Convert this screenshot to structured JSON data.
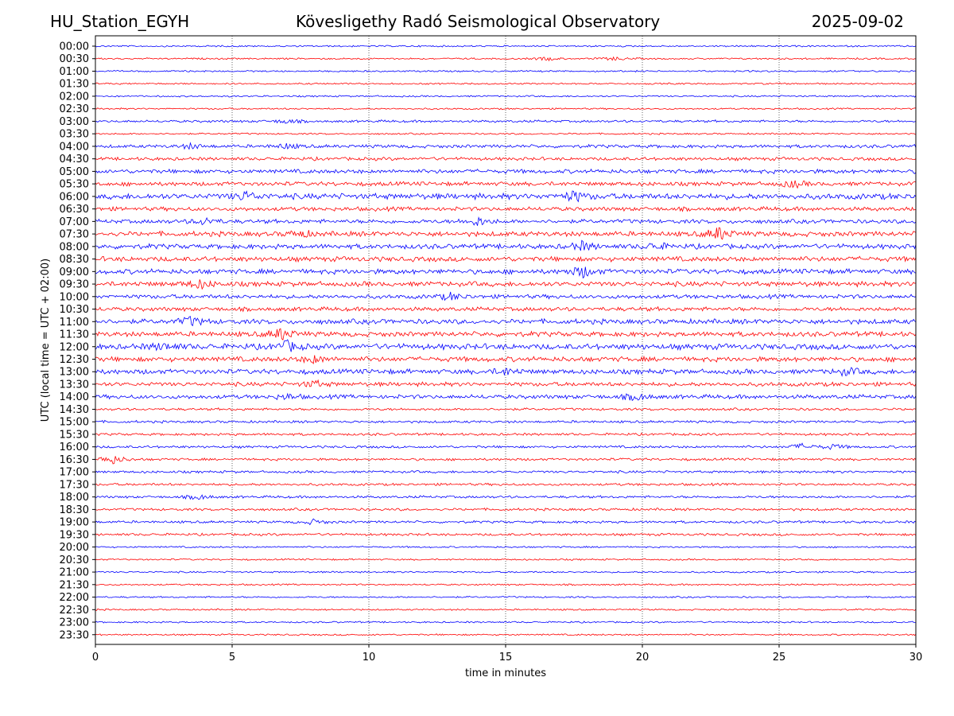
{
  "header": {
    "station": "HU_Station_EGYH",
    "observatory": "Kövesligethy Radó Seismological Observatory",
    "date": "2025-09-02"
  },
  "chart_data": {
    "type": "line",
    "title": "Kövesligethy Radó Seismological Observatory",
    "xlabel": "time in minutes",
    "ylabel": "UTC (local time = UTC + 02:00)",
    "xlim": [
      0,
      30
    ],
    "x_ticks": [
      "0",
      "5",
      "10",
      "15",
      "20",
      "25",
      "30"
    ],
    "grid": "vertical dotted lines at 5-minute ticks",
    "trace_colors": [
      "#0000ff",
      "#ff0000"
    ],
    "rows": [
      "00:00",
      "00:30",
      "01:00",
      "01:30",
      "02:00",
      "02:30",
      "03:00",
      "03:30",
      "04:00",
      "04:30",
      "05:00",
      "05:30",
      "06:00",
      "06:30",
      "07:00",
      "07:30",
      "08:00",
      "08:30",
      "09:00",
      "09:30",
      "10:00",
      "10:30",
      "11:00",
      "11:30",
      "12:00",
      "12:30",
      "13:00",
      "13:30",
      "14:00",
      "14:30",
      "15:00",
      "15:30",
      "16:00",
      "16:30",
      "17:00",
      "17:30",
      "18:00",
      "18:30",
      "19:00",
      "19:30",
      "20:00",
      "20:30",
      "21:00",
      "21:30",
      "22:00",
      "22:30",
      "23:00",
      "23:30"
    ],
    "noise_amplitude": [
      1,
      1,
      1,
      1,
      1,
      1,
      1.5,
      1,
      2,
      2,
      2.5,
      2.5,
      3.5,
      2.5,
      2.5,
      3,
      3,
      3,
      3,
      3,
      2.5,
      2.5,
      3,
      3,
      3.5,
      3,
      3,
      2.5,
      2.5,
      1.5,
      1.5,
      1.5,
      1.5,
      1.5,
      1.5,
      1.5,
      1.5,
      1.5,
      1.5,
      1.5,
      1,
      1,
      1,
      1,
      1,
      1,
      1,
      1
    ],
    "events": [
      {
        "row": "00:30",
        "minute": 16.5,
        "amplitude": 2
      },
      {
        "row": "00:30",
        "minute": 19.0,
        "amplitude": 2
      },
      {
        "row": "03:00",
        "minute": 7.0,
        "amplitude": 2.5
      },
      {
        "row": "04:00",
        "minute": 3.5,
        "amplitude": 3
      },
      {
        "row": "04:00",
        "minute": 7.0,
        "amplitude": 3
      },
      {
        "row": "05:30",
        "minute": 25.5,
        "amplitude": 4
      },
      {
        "row": "06:00",
        "minute": 17.5,
        "amplitude": 6
      },
      {
        "row": "06:00",
        "minute": 5.5,
        "amplitude": 5
      },
      {
        "row": "07:00",
        "minute": 14.0,
        "amplitude": 5
      },
      {
        "row": "07:00",
        "minute": 4.0,
        "amplitude": 4
      },
      {
        "row": "07:30",
        "minute": 22.8,
        "amplitude": 8
      },
      {
        "row": "07:30",
        "minute": 7.5,
        "amplitude": 4
      },
      {
        "row": "08:00",
        "minute": 17.8,
        "amplitude": 5
      },
      {
        "row": "08:00",
        "minute": 20.5,
        "amplitude": 4
      },
      {
        "row": "09:00",
        "minute": 17.8,
        "amplitude": 7
      },
      {
        "row": "09:30",
        "minute": 3.8,
        "amplitude": 5
      },
      {
        "row": "10:00",
        "minute": 13.0,
        "amplitude": 4
      },
      {
        "row": "11:00",
        "minute": 3.5,
        "amplitude": 5
      },
      {
        "row": "11:30",
        "minute": 6.8,
        "amplitude": 7
      },
      {
        "row": "12:00",
        "minute": 7.0,
        "amplitude": 6
      },
      {
        "row": "12:00",
        "minute": 2.5,
        "amplitude": 4
      },
      {
        "row": "12:30",
        "minute": 8.0,
        "amplitude": 4
      },
      {
        "row": "13:00",
        "minute": 27.5,
        "amplitude": 4
      },
      {
        "row": "13:00",
        "minute": 15.0,
        "amplitude": 4
      },
      {
        "row": "13:30",
        "minute": 8.0,
        "amplitude": 4
      },
      {
        "row": "14:00",
        "minute": 19.8,
        "amplitude": 4
      },
      {
        "row": "14:00",
        "minute": 7.0,
        "amplitude": 3
      },
      {
        "row": "16:00",
        "minute": 25.8,
        "amplitude": 3.5
      },
      {
        "row": "16:00",
        "minute": 27.0,
        "amplitude": 3
      },
      {
        "row": "16:30",
        "minute": 0.6,
        "amplitude": 6
      },
      {
        "row": "18:00",
        "minute": 3.8,
        "amplitude": 3
      },
      {
        "row": "19:00",
        "minute": 8.0,
        "amplitude": 3
      }
    ]
  }
}
